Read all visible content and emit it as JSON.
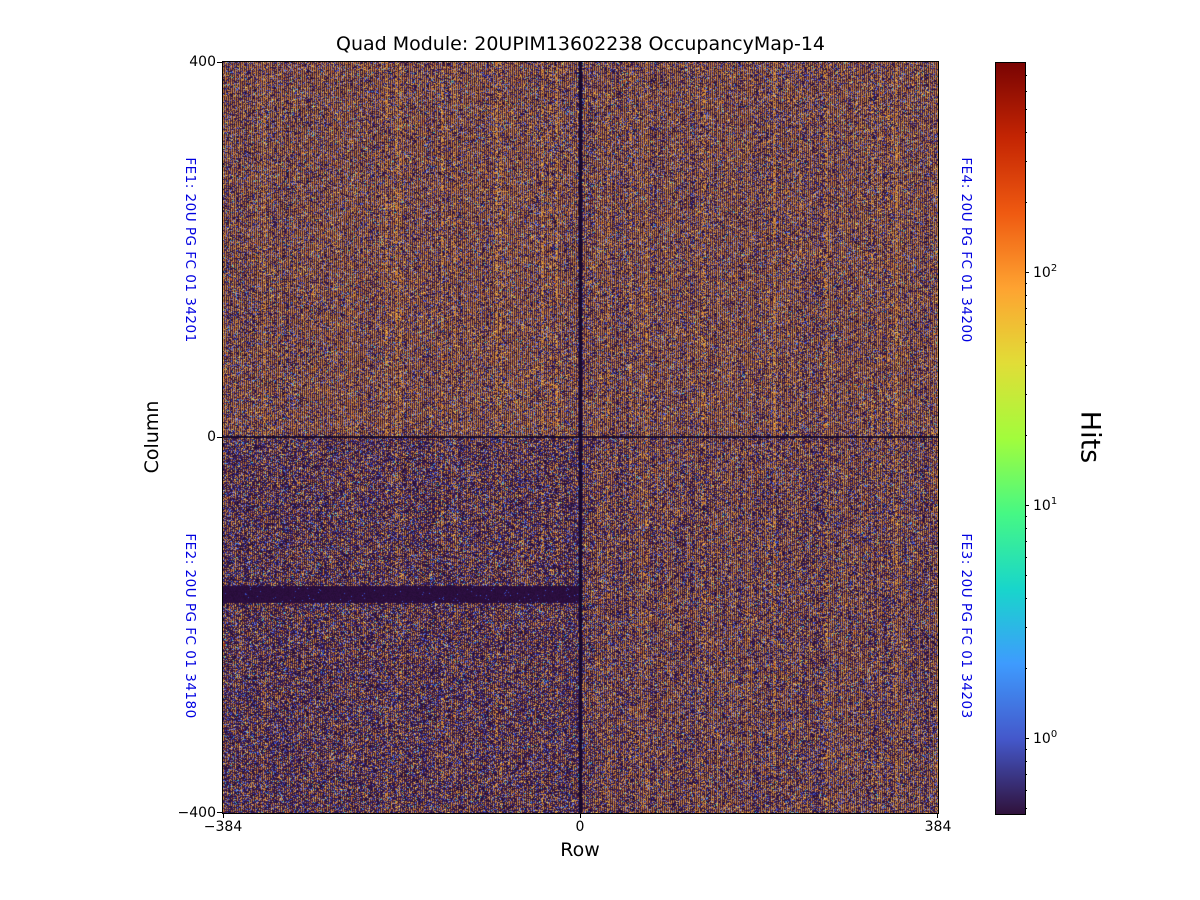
{
  "chart": {
    "title": "Quad Module: 20UPIM13602238 OccupancyMap-14",
    "xlabel": "Row",
    "ylabel": "Column",
    "xticks": [
      "−384",
      "0",
      "384"
    ],
    "yticks": [
      "400",
      "0",
      "−400"
    ]
  },
  "frontends": {
    "fe1": "FE1: 20U PG FC 01 34201",
    "fe2": "FE2: 20U PG FC 01 34180",
    "fe3": "FE3: 20U PG FC 01 34203",
    "fe4": "FE4: 20U PG FC 01 34200"
  },
  "colorbar": {
    "label": "Hits",
    "scale": "log",
    "ticks": [
      {
        "base": "10",
        "exp": "2"
      },
      {
        "base": "10",
        "exp": "1"
      },
      {
        "base": "10",
        "exp": "0"
      }
    ]
  },
  "colors": {
    "label_blue": "#0000e0",
    "frame_black": "#000000",
    "colormap_stops": [
      "#30123b",
      "#4458cb",
      "#3e9bfe",
      "#18d6cb",
      "#46f884",
      "#a2fc3c",
      "#e1dd37",
      "#fea331",
      "#ef5a11",
      "#c42503",
      "#7a0403"
    ],
    "heatmap": {
      "purples": [
        "#2c1040",
        "#371a4e",
        "#241033",
        "#3f2158"
      ],
      "band": "#2a0e3d",
      "oranges": [
        "#c87e32",
        "#d4924a",
        "#b76c27",
        "#c98a3e"
      ],
      "bright_yellow": "#e2c75e",
      "blue": "#3a50cc",
      "light_blue": "#6c84e8",
      "cyan": "#2fb5c6",
      "red": "#a53012",
      "divider": "#180a2a"
    }
  },
  "chart_data": {
    "type": "heatmap",
    "title": "Quad Module: 20UPIM13602238 OccupancyMap-14",
    "xlabel": "Row",
    "ylabel": "Column",
    "xlim": [
      -384,
      384
    ],
    "ylim": [
      -400,
      400
    ],
    "x_ticks": [
      -384,
      0,
      384
    ],
    "y_ticks": [
      400,
      0,
      -400
    ],
    "grid": false,
    "colorbar": {
      "label": "Hits",
      "scale": "log",
      "tick_values": [
        1,
        10,
        100
      ],
      "range_approx": [
        0.5,
        800
      ],
      "colormap": "turbo"
    },
    "quadrants": [
      {
        "name": "FE1: 20U PG FC 01 34201",
        "position": "top-left",
        "row_range": [
          -384,
          0
        ],
        "column_range": [
          0,
          400
        ],
        "relative_occupancy": "high, strong vertical striping"
      },
      {
        "name": "FE4: 20U PG FC 01 34200",
        "position": "top-right",
        "row_range": [
          0,
          384
        ],
        "column_range": [
          0,
          400
        ],
        "relative_occupancy": "high, strong vertical striping"
      },
      {
        "name": "FE2: 20U PG FC 01 34180",
        "position": "bottom-left",
        "row_range": [
          -384,
          0
        ],
        "column_range": [
          -400,
          0
        ],
        "relative_occupancy": "lower average occupancy, darker"
      },
      {
        "name": "FE3: 20U PG FC 01 34203",
        "position": "bottom-right",
        "row_range": [
          0,
          384
        ],
        "column_range": [
          -400,
          0
        ],
        "relative_occupancy": "medium occupancy"
      }
    ],
    "description": "Per-pixel hit-occupancy map of a quad pixel module. Dark-purple low-occupancy background (~0.5–1 hits) overlaid with dense vertical stripes of higher occupancy (~2–5 hits, tan/orange) and scattered single-pixel outliers (blue/cyan/red). Thin dark dividers at row = 0 and column = 0 separate the four front-end chips.",
    "features": [
      {
        "type": "dead_band",
        "quadrant": "FE2",
        "row_range": [
          -384,
          0
        ],
        "column_range": [
          -175,
          -158
        ],
        "value": 0
      },
      {
        "type": "chip_divider",
        "axis": "vertical",
        "row": 0
      },
      {
        "type": "chip_divider",
        "axis": "horizontal",
        "column": 0
      }
    ]
  }
}
